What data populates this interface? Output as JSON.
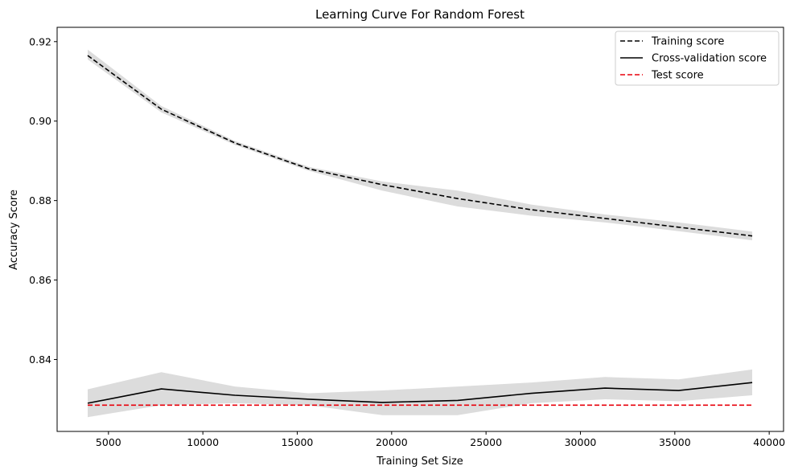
{
  "chart_data": {
    "type": "line",
    "title": "Learning Curve For Random Forest",
    "xlabel": "Training Set Size",
    "ylabel": "Accuracy Score",
    "xlim": [
      2280,
      40760
    ],
    "ylim": [
      0.8219,
      0.9236
    ],
    "xticks": [
      5000,
      10000,
      15000,
      20000,
      25000,
      30000,
      35000,
      40000
    ],
    "xtick_labels": [
      "5000",
      "10000",
      "15000",
      "20000",
      "25000",
      "30000",
      "35000",
      "40000"
    ],
    "yticks": [
      0.84,
      0.86,
      0.88,
      0.9,
      0.92
    ],
    "ytick_labels": [
      "0.84",
      "0.86",
      "0.88",
      "0.90",
      "0.92"
    ],
    "grid": false,
    "legend_position": "top-right",
    "x": [
      3900,
      7800,
      11700,
      15600,
      19500,
      23500,
      27400,
      31300,
      35200,
      39100
    ],
    "series": [
      {
        "name": "Training score",
        "style": "dashed",
        "color": "#000000",
        "values": [
          0.9165,
          0.903,
          0.8945,
          0.888,
          0.884,
          0.8805,
          0.8777,
          0.8755,
          0.8733,
          0.8711
        ],
        "band_lower": [
          0.9155,
          0.9022,
          0.894,
          0.8875,
          0.8825,
          0.8785,
          0.8762,
          0.8745,
          0.8723,
          0.87
        ],
        "band_upper": [
          0.918,
          0.9038,
          0.895,
          0.8885,
          0.8848,
          0.8825,
          0.879,
          0.8765,
          0.8745,
          0.8722
        ]
      },
      {
        "name": "Cross-validation score",
        "style": "solid",
        "color": "#000000",
        "values": [
          0.829,
          0.8326,
          0.831,
          0.83,
          0.8292,
          0.8297,
          0.8315,
          0.8328,
          0.8322,
          0.8342
        ],
        "band_lower": [
          0.8255,
          0.8285,
          0.829,
          0.8285,
          0.826,
          0.826,
          0.829,
          0.83,
          0.8295,
          0.831
        ],
        "band_upper": [
          0.8325,
          0.8368,
          0.8332,
          0.8315,
          0.8322,
          0.8332,
          0.8342,
          0.8356,
          0.835,
          0.8375
        ]
      },
      {
        "name": "Test score",
        "style": "dashed",
        "color": "#e8000b",
        "values": [
          0.8285,
          0.8285,
          0.8285,
          0.8285,
          0.8285,
          0.8285,
          0.8285,
          0.8285,
          0.8285,
          0.8285
        ]
      }
    ],
    "band_color": "#dcdcdc"
  }
}
